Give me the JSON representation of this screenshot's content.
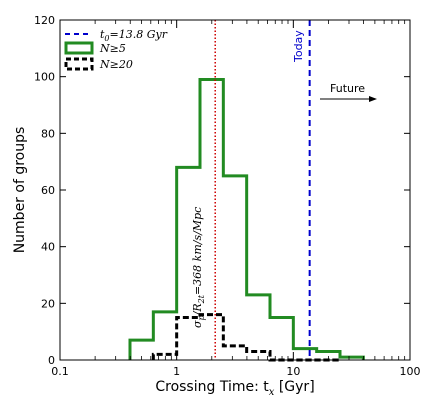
{
  "chart_data": {
    "type": "histogram",
    "xlabel": "Crossing Time: t",
    "xlabel_sub": "x",
    "xlabel_unit": " [Gyr]",
    "ylabel": "Number of groups",
    "xscale": "log",
    "xlim": [
      0.1,
      100
    ],
    "ylim": [
      0,
      120
    ],
    "xticks": [
      0.1,
      1,
      10,
      100
    ],
    "xtick_labels": [
      "0.1",
      "1",
      "10",
      "100"
    ],
    "yticks": [
      0,
      20,
      40,
      60,
      80,
      100,
      120
    ],
    "ytick_labels": [
      "0",
      "20",
      "40",
      "60",
      "80",
      "100",
      "120"
    ],
    "bin_edges": [
      0.398,
      0.631,
      1.0,
      1.585,
      2.512,
      3.981,
      6.31,
      10.0,
      15.85,
      25.12
    ],
    "series": [
      {
        "name": "N≥5",
        "color": "#228B22",
        "style": "solid",
        "counts": [
          7,
          17,
          68,
          99,
          65,
          23,
          15,
          4,
          3
        ]
      },
      {
        "name": "N≥20",
        "color": "#000000",
        "style": "dashed",
        "counts": [
          0,
          2,
          15,
          16,
          5,
          3,
          0,
          0,
          0
        ]
      }
    ],
    "extra_step": {
      "series_index": 0,
      "x": [
        25.12,
        39.81
      ],
      "value": 1
    },
    "vlines": [
      {
        "name": "t₀=13.8 Gyr",
        "x": 13.8,
        "color": "#0000cc",
        "style": "dashed",
        "label": "Today"
      },
      {
        "x": 2.14,
        "color": "#cc0000",
        "style": "dotted"
      }
    ],
    "annotations": {
      "today": "Today",
      "future": "Future",
      "sigma_text": "σp/R2t=368 km/s/Mpc"
    },
    "legend": {
      "placement": "top-left",
      "entries": [
        {
          "label": "t0=13.8 Gyr",
          "color": "#0000cc",
          "style": "dashed"
        },
        {
          "label": "N≥5",
          "color": "#228B22",
          "style": "solid"
        },
        {
          "label": "N≥20",
          "color": "#000000",
          "style": "dashed"
        }
      ]
    }
  }
}
